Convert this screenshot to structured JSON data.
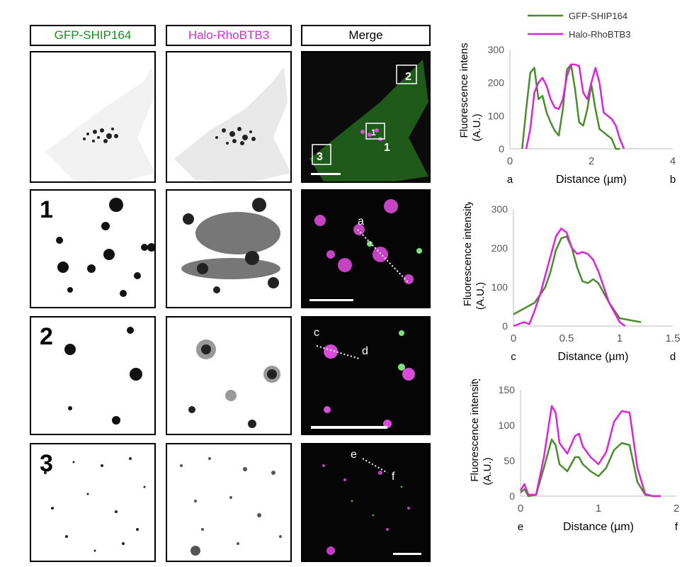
{
  "headers": {
    "gfp": "GFP-SHIP164",
    "halo": "Halo-RhoBTB3",
    "merge": "Merge"
  },
  "colors": {
    "gfp": "#4a8c2a",
    "halo": "#dd22dd",
    "gfp_text": "#1f8a1f",
    "halo_text": "#d92ad9"
  },
  "rows": {
    "r1": "1",
    "r2": "2",
    "r3": "3"
  },
  "merge_labels": {
    "box1": "1",
    "box2": "2",
    "box3": "3",
    "a": "a",
    "c": "c",
    "d": "d",
    "e": "e",
    "f": "f"
  },
  "legend": {
    "gfp": "GFP-SHIP164",
    "halo": "Halo-RhoBTB3"
  },
  "chart_data": [
    {
      "type": "line",
      "ylabel_line1": "Fluorescence intensity",
      "ylabel_line2": "(A.U.)",
      "xlabel": "Distance (µm)",
      "x_start_label": "a",
      "x_end_label": "b",
      "xlim": [
        0,
        4
      ],
      "ylim": [
        0,
        300
      ],
      "xticks": [
        0,
        2,
        4
      ],
      "yticks": [
        0,
        100,
        200,
        300
      ],
      "series": [
        {
          "name": "GFP-SHIP164",
          "x": [
            0.3,
            0.4,
            0.5,
            0.6,
            0.7,
            0.8,
            0.9,
            1.0,
            1.1,
            1.2,
            1.3,
            1.4,
            1.5,
            1.6,
            1.7,
            1.8,
            1.9,
            2.0,
            2.1,
            2.2,
            2.3,
            2.4,
            2.5,
            2.6,
            2.7
          ],
          "values": [
            0,
            120,
            230,
            245,
            150,
            160,
            110,
            80,
            55,
            40,
            120,
            240,
            255,
            180,
            80,
            70,
            120,
            195,
            120,
            60,
            50,
            40,
            30,
            0,
            0
          ]
        },
        {
          "name": "Halo-RhoBTB3",
          "x": [
            0.4,
            0.5,
            0.6,
            0.7,
            0.8,
            0.9,
            1.0,
            1.1,
            1.2,
            1.3,
            1.4,
            1.5,
            1.6,
            1.7,
            1.8,
            1.9,
            2.0,
            2.1,
            2.2,
            2.3,
            2.4,
            2.5,
            2.6,
            2.7,
            2.8
          ],
          "values": [
            0,
            60,
            170,
            200,
            215,
            190,
            150,
            125,
            120,
            150,
            220,
            255,
            255,
            250,
            170,
            150,
            200,
            245,
            200,
            110,
            100,
            90,
            70,
            30,
            0
          ]
        }
      ]
    },
    {
      "type": "line",
      "ylabel_line1": "Fluorescence intensity",
      "ylabel_line2": "(A.U.)",
      "xlabel": "Distance (µm)",
      "x_start_label": "c",
      "x_end_label": "d",
      "xlim": [
        0,
        1.5
      ],
      "ylim": [
        0,
        300
      ],
      "xticks": [
        0,
        0.5,
        1,
        1.5
      ],
      "yticks": [
        0,
        100,
        200,
        300
      ],
      "series": [
        {
          "name": "GFP-SHIP164",
          "x": [
            0,
            0.1,
            0.2,
            0.3,
            0.35,
            0.4,
            0.45,
            0.5,
            0.55,
            0.6,
            0.65,
            0.7,
            0.75,
            0.8,
            0.9,
            1.0,
            1.1,
            1.2
          ],
          "values": [
            30,
            45,
            60,
            100,
            140,
            195,
            225,
            230,
            200,
            150,
            115,
            110,
            120,
            110,
            60,
            20,
            15,
            10
          ]
        },
        {
          "name": "Halo-RhoBTB3",
          "x": [
            0,
            0.1,
            0.15,
            0.2,
            0.25,
            0.3,
            0.35,
            0.4,
            0.45,
            0.5,
            0.55,
            0.6,
            0.65,
            0.7,
            0.75,
            0.8,
            0.9,
            1.0,
            1.05
          ],
          "values": [
            0,
            10,
            5,
            40,
            80,
            130,
            180,
            230,
            250,
            240,
            200,
            185,
            190,
            185,
            170,
            140,
            60,
            10,
            0
          ]
        }
      ]
    },
    {
      "type": "line",
      "ylabel_line1": "Fluorescence intensity",
      "ylabel_line2": "(A.U.)",
      "xlabel": "Distance (µm)",
      "x_start_label": "e",
      "x_end_label": "f",
      "xlim": [
        0,
        2
      ],
      "ylim": [
        0,
        150
      ],
      "xticks": [
        0,
        1,
        2
      ],
      "yticks": [
        0,
        50,
        100,
        150
      ],
      "series": [
        {
          "name": "GFP-SHIP164",
          "x": [
            0,
            0.05,
            0.1,
            0.2,
            0.3,
            0.4,
            0.45,
            0.5,
            0.6,
            0.7,
            0.75,
            0.8,
            0.9,
            1.0,
            1.1,
            1.2,
            1.3,
            1.4,
            1.5,
            1.6,
            1.7,
            1.8
          ],
          "values": [
            5,
            10,
            0,
            2,
            40,
            80,
            72,
            45,
            35,
            55,
            55,
            45,
            35,
            28,
            40,
            65,
            75,
            72,
            20,
            2,
            0,
            0
          ]
        },
        {
          "name": "Halo-RhoBTB3",
          "x": [
            0,
            0.05,
            0.1,
            0.2,
            0.3,
            0.4,
            0.45,
            0.5,
            0.6,
            0.7,
            0.75,
            0.8,
            0.9,
            1.0,
            1.1,
            1.2,
            1.3,
            1.4,
            1.5,
            1.6,
            1.7,
            1.8
          ],
          "values": [
            8,
            17,
            2,
            2,
            55,
            127,
            118,
            75,
            60,
            85,
            88,
            70,
            55,
            45,
            62,
            105,
            120,
            118,
            40,
            3,
            0,
            0
          ]
        }
      ]
    }
  ]
}
